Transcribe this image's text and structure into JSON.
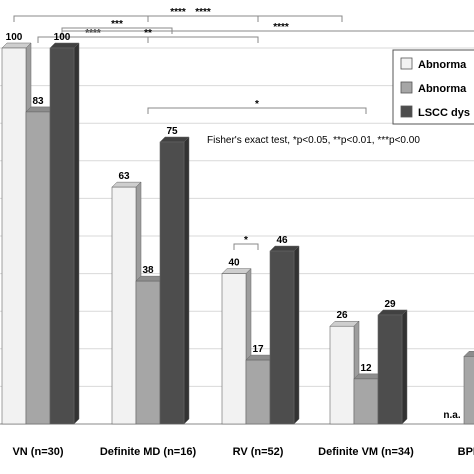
{
  "chart_data": {
    "type": "bar",
    "categories": [
      "VN (n=30)",
      "Definite MD (n=16)",
      "RV (n=52)",
      "Definite VM (n=34)",
      "BPPV ("
    ],
    "series": [
      {
        "name": "Abnorma",
        "values": [
          100,
          63,
          40,
          26,
          0
        ],
        "labels": [
          "100",
          "63",
          "40",
          "26",
          "n.a."
        ],
        "color": "#f2f2f2"
      },
      {
        "name": "Abnorma",
        "values": [
          83,
          38,
          17,
          12,
          18
        ],
        "labels": [
          "83",
          "38",
          "17",
          "12",
          ""
        ],
        "color": "#a6a6a6"
      },
      {
        "name": "LSCC dys",
        "values": [
          100,
          75,
          46,
          29,
          null
        ],
        "labels": [
          "100",
          "75",
          "46",
          "29",
          ""
        ],
        "color": "#4d4d4d"
      }
    ],
    "ylim": [
      0,
      100
    ],
    "grid": true,
    "legend": "top-right",
    "annotation": "Fisher's exact test, *p<0.05, **p<0.01, ***p<0.00",
    "significance": [
      {
        "from": [
          0,
          0
        ],
        "to": [
          3,
          0
        ],
        "label": "****"
      },
      {
        "from": [
          0,
          1
        ],
        "to": [
          1,
          1
        ],
        "label": "****"
      },
      {
        "from": [
          1,
          1
        ],
        "to": [
          2,
          1
        ],
        "label": "****"
      },
      {
        "from": [
          0,
          2
        ],
        "to": [
          4,
          2
        ],
        "label": "****"
      },
      {
        "from": [
          0,
          2
        ],
        "to": [
          1,
          2
        ],
        "label": "***"
      },
      {
        "from": [
          0,
          1
        ],
        "to": [
          2,
          1
        ],
        "label": "**"
      },
      {
        "from": [
          1,
          1
        ],
        "to": [
          3,
          1
        ],
        "label": "*"
      },
      {
        "from": [
          2,
          0
        ],
        "to": [
          2,
          1
        ],
        "label": "*"
      }
    ]
  }
}
